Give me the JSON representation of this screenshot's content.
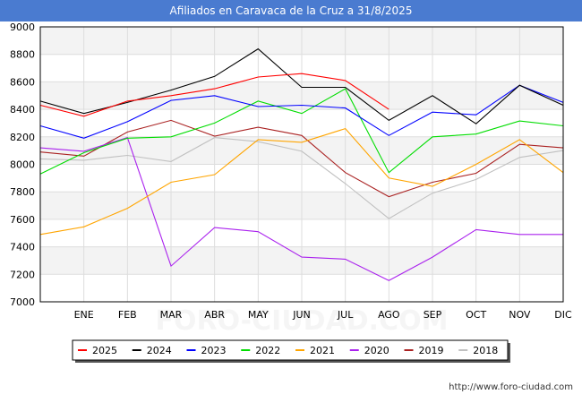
{
  "header": {
    "title": "Afiliados en Caravaca de la Cruz a 31/8/2025"
  },
  "footer": {
    "url": "http://www.foro-ciudad.com"
  },
  "watermark": "FORO-CIUDAD.COM",
  "chart_data": {
    "type": "line",
    "title": "Afiliados en Caravaca de la Cruz a 31/8/2025",
    "categories": [
      "",
      "ENE",
      "FEB",
      "MAR",
      "ABR",
      "MAY",
      "JUN",
      "JUL",
      "AGO",
      "SEP",
      "OCT",
      "NOV",
      "DIC"
    ],
    "yticks": [
      7000,
      7200,
      7400,
      7600,
      7800,
      8000,
      8200,
      8400,
      8600,
      8800,
      9000
    ],
    "ylim": [
      7000,
      9000
    ],
    "grid": true,
    "legend_position": "bottom",
    "series": [
      {
        "name": "2025",
        "color": "#ff0000",
        "values": [
          8430,
          8350,
          8460,
          8500,
          8550,
          8635,
          8660,
          8610,
          8400,
          null,
          null,
          null,
          null
        ]
      },
      {
        "name": "2024",
        "color": "#000000",
        "values": [
          8460,
          8370,
          8450,
          8540,
          8640,
          8840,
          8560,
          8560,
          8320,
          8500,
          8295,
          8575,
          8430
        ]
      },
      {
        "name": "2023",
        "color": "#0000ff",
        "values": [
          8280,
          8190,
          8310,
          8465,
          8500,
          8420,
          8430,
          8410,
          8210,
          8380,
          8360,
          8575,
          8450
        ]
      },
      {
        "name": "2022",
        "color": "#00dd00",
        "values": [
          7930,
          8085,
          8190,
          8200,
          8300,
          8460,
          8370,
          8550,
          7940,
          8200,
          8220,
          8315,
          8280
        ]
      },
      {
        "name": "2021",
        "color": "#ffa500",
        "values": [
          7490,
          7545,
          7680,
          7870,
          7925,
          8180,
          8160,
          8260,
          7900,
          7840,
          8000,
          8180,
          7940
        ]
      },
      {
        "name": "2020",
        "color": "#aa22ee",
        "values": [
          8120,
          8095,
          8195,
          7260,
          7540,
          7510,
          7325,
          7310,
          7155,
          7325,
          7525,
          7490,
          7490
        ]
      },
      {
        "name": "2019",
        "color": "#aa2222",
        "values": [
          8090,
          8060,
          8235,
          8320,
          8205,
          8270,
          8210,
          7940,
          7765,
          7870,
          7935,
          8145,
          8120
        ]
      },
      {
        "name": "2018",
        "color": "#c0c0c0",
        "values": [
          8040,
          8030,
          8065,
          8020,
          8195,
          8165,
          8095,
          7860,
          7605,
          7790,
          7890,
          8050,
          8100
        ]
      }
    ]
  }
}
